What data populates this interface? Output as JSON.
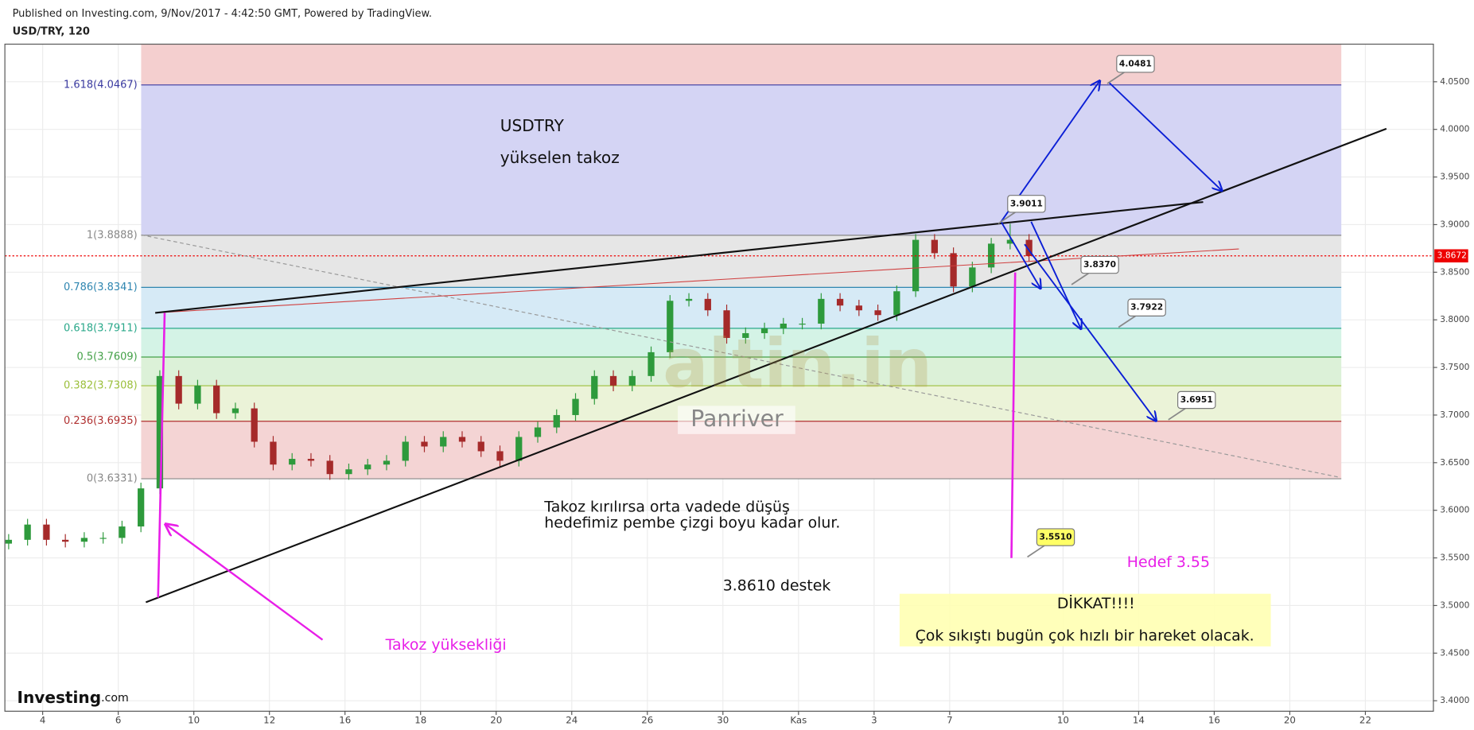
{
  "header": {
    "published": "Published on Investing.com, 9/Nov/2017 - 4:42:50 GMT, Powered by TradingView.",
    "symbol": "USD/TRY, 120"
  },
  "chart_data": {
    "type": "candlestick",
    "up_color": "#2e9a3c",
    "down_color": "#a52a2a",
    "x": [
      0.1,
      0.6,
      1.1,
      1.6,
      2.1,
      2.6,
      3.1,
      3.6,
      4.1,
      4.6,
      5.1,
      5.6,
      6.1,
      6.6,
      7.1,
      7.6,
      8.1,
      8.6,
      9.1,
      9.6,
      10.1,
      10.6,
      11.1,
      11.6,
      12.1,
      12.6,
      13.1,
      13.6,
      14.1,
      14.6,
      15.1,
      15.6,
      16.1,
      16.6,
      17.1,
      17.6,
      18.1,
      18.6,
      19.1,
      19.6,
      20.1,
      20.6,
      21.1,
      21.6,
      22.1,
      22.6,
      23.1,
      23.6,
      24.1,
      24.6,
      25.1,
      25.6,
      26.1,
      26.6,
      27.1
    ],
    "open": [
      3.565,
      3.569,
      3.585,
      3.569,
      3.567,
      3.571,
      3.571,
      3.583,
      3.623,
      3.741,
      3.712,
      3.731,
      3.702,
      3.707,
      3.672,
      3.648,
      3.654,
      3.652,
      3.638,
      3.643,
      3.648,
      3.652,
      3.672,
      3.667,
      3.677,
      3.672,
      3.662,
      3.652,
      3.677,
      3.687,
      3.7,
      3.717,
      3.741,
      3.731,
      3.741,
      3.766,
      3.82,
      3.822,
      3.81,
      3.781,
      3.786,
      3.791,
      3.796,
      3.796,
      3.822,
      3.815,
      3.81,
      3.805,
      3.83,
      3.884,
      3.87,
      3.835,
      3.855,
      3.88,
      3.884
    ],
    "high": [
      3.575,
      3.591,
      3.591,
      3.575,
      3.577,
      3.577,
      3.589,
      3.629,
      3.747,
      3.747,
      3.737,
      3.737,
      3.713,
      3.713,
      3.678,
      3.66,
      3.66,
      3.658,
      3.649,
      3.654,
      3.658,
      3.678,
      3.678,
      3.683,
      3.683,
      3.678,
      3.668,
      3.683,
      3.693,
      3.706,
      3.723,
      3.747,
      3.747,
      3.747,
      3.772,
      3.826,
      3.828,
      3.828,
      3.816,
      3.792,
      3.797,
      3.802,
      3.802,
      3.828,
      3.828,
      3.821,
      3.816,
      3.836,
      3.89,
      3.89,
      3.876,
      3.861,
      3.886,
      3.901,
      3.89
    ],
    "low": [
      3.559,
      3.563,
      3.563,
      3.561,
      3.561,
      3.565,
      3.565,
      3.577,
      3.617,
      3.706,
      3.706,
      3.696,
      3.696,
      3.666,
      3.642,
      3.642,
      3.646,
      3.632,
      3.632,
      3.637,
      3.642,
      3.646,
      3.661,
      3.661,
      3.666,
      3.656,
      3.646,
      3.646,
      3.671,
      3.681,
      3.694,
      3.711,
      3.725,
      3.725,
      3.735,
      3.76,
      3.814,
      3.804,
      3.775,
      3.775,
      3.78,
      3.785,
      3.79,
      3.79,
      3.809,
      3.804,
      3.799,
      3.799,
      3.824,
      3.864,
      3.829,
      3.829,
      3.849,
      3.874,
      3.861
    ],
    "close": [
      3.569,
      3.585,
      3.569,
      3.567,
      3.571,
      3.571,
      3.583,
      3.623,
      3.741,
      3.712,
      3.731,
      3.702,
      3.707,
      3.672,
      3.648,
      3.654,
      3.652,
      3.638,
      3.643,
      3.648,
      3.652,
      3.672,
      3.667,
      3.677,
      3.672,
      3.662,
      3.652,
      3.677,
      3.687,
      3.7,
      3.717,
      3.741,
      3.731,
      3.741,
      3.766,
      3.82,
      3.822,
      3.81,
      3.781,
      3.786,
      3.791,
      3.796,
      3.796,
      3.822,
      3.815,
      3.81,
      3.805,
      3.83,
      3.884,
      3.87,
      3.835,
      3.855,
      3.88,
      3.884,
      3.867
    ],
    "xlim": [
      0,
      37.8
    ],
    "ylim": [
      3.389,
      4.0895
    ],
    "grid": true,
    "xticks": [
      {
        "value": 1,
        "label": "4"
      },
      {
        "value": 3,
        "label": "6"
      },
      {
        "value": 5,
        "label": "10"
      },
      {
        "value": 7,
        "label": "12"
      },
      {
        "value": 9,
        "label": "16"
      },
      {
        "value": 11,
        "label": "18"
      },
      {
        "value": 13,
        "label": "20"
      },
      {
        "value": 15,
        "label": "24"
      },
      {
        "value": 17,
        "label": "26"
      },
      {
        "value": 19,
        "label": "30"
      },
      {
        "value": 21,
        "label": "Kas"
      },
      {
        "value": 23,
        "label": "3"
      },
      {
        "value": 25,
        "label": "7"
      },
      {
        "value": 28,
        "label": "10"
      },
      {
        "value": 30,
        "label": "14"
      },
      {
        "value": 32,
        "label": "16"
      },
      {
        "value": 34,
        "label": "20"
      },
      {
        "value": 36,
        "label": "22"
      }
    ],
    "yticks": [
      {
        "value": 4.05,
        "label": "4.0500"
      },
      {
        "value": 4.0,
        "label": "4.0000"
      },
      {
        "value": 3.95,
        "label": "3.9500"
      },
      {
        "value": 3.9,
        "label": "3.9000"
      },
      {
        "value": 3.85,
        "label": "3.8500"
      },
      {
        "value": 3.8,
        "label": "3.8000"
      },
      {
        "value": 3.75,
        "label": "3.7500"
      },
      {
        "value": 3.7,
        "label": "3.7000"
      },
      {
        "value": 3.65,
        "label": "3.6500"
      },
      {
        "value": 3.6,
        "label": "3.6000"
      },
      {
        "value": 3.55,
        "label": "3.5500"
      },
      {
        "value": 3.5,
        "label": "3.5000"
      },
      {
        "value": 3.45,
        "label": "3.4500"
      },
      {
        "value": 3.4,
        "label": "3.4000"
      }
    ],
    "last_price": 3.8672,
    "fib_levels": [
      {
        "label": "1.618(4.0467)",
        "value": 4.0467,
        "color": "#3a3aa0",
        "fill": "#f4cfcf"
      },
      {
        "label": "1(3.8888)",
        "value": 3.8888,
        "color": "#888888",
        "fill": "#d4d4f4"
      },
      {
        "label": "0.786(3.8341)",
        "value": 3.8341,
        "color": "#2f86b0",
        "fill": "#e6e6e6"
      },
      {
        "label": "0.618(3.7911)",
        "value": 3.7911,
        "color": "#2aa88a",
        "fill": "#d6eaf6"
      },
      {
        "label": "0.5(3.7609)",
        "value": 3.7609,
        "color": "#43a047",
        "fill": "#d4f3e6"
      },
      {
        "label": "0.382(3.7308)",
        "value": 3.7308,
        "color": "#9bbf3b",
        "fill": "#dcf1d8"
      },
      {
        "label": "0.236(3.6935)",
        "value": 3.6935,
        "color": "#b03030",
        "fill": "#ebf3d8"
      },
      {
        "label": "0(3.6331)",
        "value": 3.6331,
        "color": "#888888",
        "fill": "#f4d4d4"
      }
    ],
    "callouts": [
      {
        "value": 4.0481,
        "label": "4.0481"
      },
      {
        "value": 3.9011,
        "label": "3.9011"
      },
      {
        "value": 3.837,
        "label": "3.8370"
      },
      {
        "value": 3.7922,
        "label": "3.7922"
      },
      {
        "value": 3.6951,
        "label": "3.6951"
      },
      {
        "value": 3.551,
        "label": "3.5510"
      }
    ]
  },
  "annotations": {
    "title": "USDTRY",
    "subtitle": "yükselen takoz",
    "note1": "Takoz kırılırsa orta vadede düşüş",
    "note2": "hedefimiz pembe çizgi boyu kadar olur.",
    "support": "3.8610 destek",
    "height": "Takoz yüksekliği",
    "target": "Hedef 3.55",
    "warning": "DİKKAT!!!!",
    "warning_text": "Çok sıkıştı bugün çok hızlı bir hareket olacak.",
    "watermark": "altin.in",
    "watermark2": "Panriver",
    "logo": "Investing",
    "logo_suffix": ".com"
  }
}
